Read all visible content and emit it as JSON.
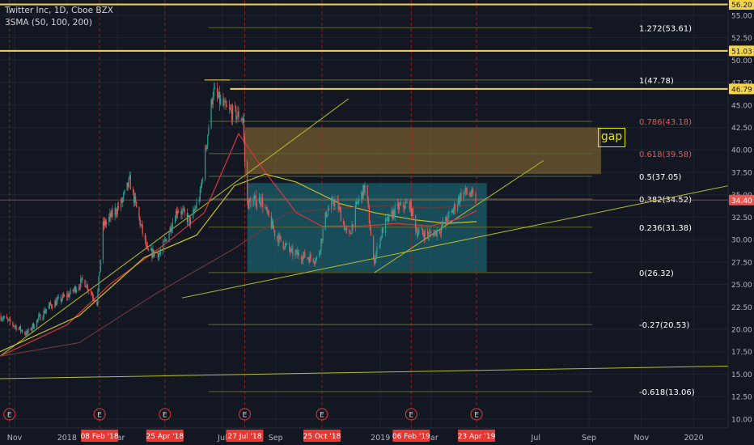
{
  "legend": {
    "symbol_line": "Twitter Inc, 1D, Cboe BZX",
    "indicator_line": "3SMA (50, 100, 200)"
  },
  "annotations": {
    "gap_label": "gap"
  },
  "colors": {
    "background": "#131722",
    "grid": "#1f2433",
    "bull": "#26a69a",
    "bear": "#ef5350",
    "fib_label": "#ffffff",
    "fib_line": "#5d6a2f",
    "gold_line": "#f5d547",
    "gap_zone": "#8a6d32",
    "range_zone": "#1e6f7e",
    "sma_red": "#d9363e",
    "sma_yellow": "#c8c21f",
    "sma_brown": "#6b3a3a",
    "trend": "#b8bd2c",
    "earnings_line": "#b71c1c",
    "earnings_marker": "#e53935"
  },
  "chart_data": {
    "type": "candlestick",
    "title": "Twitter Inc, 1D, Cboe BZX",
    "y_axis": {
      "ticks": [
        "55.00",
        "52.50",
        "50.00",
        "47.50",
        "45.00",
        "42.50",
        "40.00",
        "37.50",
        "35.00",
        "32.50",
        "30.00",
        "27.50",
        "25.00",
        "22.50",
        "20.00",
        "17.50",
        "15.00",
        "12.50",
        "10.00"
      ],
      "tick_values": [
        55,
        52.5,
        50,
        47.5,
        45,
        42.5,
        40,
        37.5,
        35,
        32.5,
        30,
        27.5,
        25,
        22.5,
        20,
        17.5,
        15,
        12.5,
        10
      ],
      "range": [
        9.0,
        56.7
      ],
      "price_badges": [
        {
          "label": "56.20",
          "value": 56.2,
          "style": "gold"
        },
        {
          "label": "51.03",
          "value": 51.03,
          "style": "gold"
        },
        {
          "label": "46.79",
          "value": 46.79,
          "style": "gold"
        },
        {
          "label": "34.40",
          "value": 34.4,
          "style": "red"
        }
      ]
    },
    "x_axis": {
      "ticks": [
        "Nov",
        "2018",
        "Mar",
        "Jul",
        "Sep",
        "2019",
        "Mar",
        "Jul",
        "Sep",
        "Nov",
        "2020"
      ],
      "tick_dates": [
        "2017-11-01",
        "2018-01-01",
        "2018-03-01",
        "2018-07-01",
        "2018-09-01",
        "2019-01-01",
        "2019-03-01",
        "2019-07-01",
        "2019-09-01",
        "2019-11-01",
        "2020-01-01"
      ],
      "range": [
        "2017-10-15",
        "2020-02-10"
      ],
      "highlight_dates": [
        {
          "label": "08 Feb '18",
          "date": "2018-02-08"
        },
        {
          "label": "25 Apr '18",
          "date": "2018-04-25"
        },
        {
          "label": "27 Jul '18",
          "date": "2018-07-27"
        },
        {
          "label": "25 Oct '18",
          "date": "2018-10-25"
        },
        {
          "label": "06 Feb '19",
          "date": "2019-02-06"
        },
        {
          "label": "23 Apr '19",
          "date": "2019-04-23"
        }
      ],
      "earnings_marker_label": "E",
      "earnings_dates": [
        "2017-10-26",
        "2018-02-08",
        "2018-04-25",
        "2018-07-27",
        "2018-10-25",
        "2019-02-06",
        "2019-04-23"
      ]
    },
    "price_path": [
      [
        "2017-10-15",
        21.5
      ],
      [
        "2017-11-15",
        19.5
      ],
      [
        "2017-12-10",
        22.5
      ],
      [
        "2018-01-05",
        24.0
      ],
      [
        "2018-01-20",
        25.5
      ],
      [
        "2018-02-05",
        23.0
      ],
      [
        "2018-02-12",
        31.5
      ],
      [
        "2018-03-05",
        34.0
      ],
      [
        "2018-03-15",
        36.5
      ],
      [
        "2018-04-05",
        28.5
      ],
      [
        "2018-04-20",
        28.5
      ],
      [
        "2018-05-10",
        33.5
      ],
      [
        "2018-05-25",
        32.0
      ],
      [
        "2018-06-05",
        35.0
      ],
      [
        "2018-06-20",
        46.5
      ],
      [
        "2018-07-05",
        44.5
      ],
      [
        "2018-07-25",
        43.5
      ],
      [
        "2018-07-29",
        34.0
      ],
      [
        "2018-08-15",
        34.5
      ],
      [
        "2018-09-01",
        30.5
      ],
      [
        "2018-09-20",
        28.5
      ],
      [
        "2018-10-10",
        28.0
      ],
      [
        "2018-10-20",
        27.8
      ],
      [
        "2018-10-30",
        33.0
      ],
      [
        "2018-11-10",
        34.5
      ],
      [
        "2018-11-25",
        30.0
      ],
      [
        "2018-12-05",
        34.0
      ],
      [
        "2018-12-15",
        36.0
      ],
      [
        "2018-12-24",
        27.5
      ],
      [
        "2019-01-05",
        31.5
      ],
      [
        "2019-01-20",
        33.5
      ],
      [
        "2019-02-04",
        34.0
      ],
      [
        "2019-02-12",
        31.0
      ],
      [
        "2019-02-25",
        30.5
      ],
      [
        "2019-03-10",
        31.0
      ],
      [
        "2019-03-25",
        33.0
      ],
      [
        "2019-04-05",
        35.0
      ],
      [
        "2019-04-12",
        35.3
      ],
      [
        "2019-04-22",
        34.4
      ]
    ],
    "series": [
      {
        "name": "SMA 50",
        "color": "#d9363e",
        "points": [
          [
            "2017-10-15",
            17.0
          ],
          [
            "2018-01-01",
            20.5
          ],
          [
            "2018-02-20",
            25.0
          ],
          [
            "2018-04-25",
            29.5
          ],
          [
            "2018-06-10",
            33.0
          ],
          [
            "2018-07-20",
            41.8
          ],
          [
            "2018-08-20",
            37.5
          ],
          [
            "2018-09-25",
            33.0
          ],
          [
            "2018-10-25",
            31.5
          ],
          [
            "2018-12-10",
            31.5
          ],
          [
            "2019-01-20",
            31.8
          ],
          [
            "2019-03-01",
            31.5
          ],
          [
            "2019-04-05",
            32.4
          ],
          [
            "2019-04-23",
            33.2
          ]
        ]
      },
      {
        "name": "SMA 100",
        "color": "#c8c21f",
        "points": [
          [
            "2017-10-15",
            17.5
          ],
          [
            "2018-01-15",
            21.5
          ],
          [
            "2018-04-01",
            28.0
          ],
          [
            "2018-06-01",
            30.5
          ],
          [
            "2018-07-15",
            36.0
          ],
          [
            "2018-08-20",
            37.3
          ],
          [
            "2018-09-25",
            36.4
          ],
          [
            "2018-11-15",
            34.0
          ],
          [
            "2018-12-25",
            33.0
          ],
          [
            "2019-02-10",
            32.2
          ],
          [
            "2019-03-20",
            31.8
          ],
          [
            "2019-04-23",
            32.0
          ]
        ]
      },
      {
        "name": "SMA 200",
        "color": "#6b3a3a",
        "points": [
          [
            "2017-10-15",
            17.0
          ],
          [
            "2018-01-15",
            18.5
          ],
          [
            "2018-04-15",
            24.0
          ],
          [
            "2018-07-15",
            29.0
          ],
          [
            "2018-09-15",
            33.0
          ],
          [
            "2018-11-15",
            33.5
          ],
          [
            "2019-01-15",
            33.8
          ],
          [
            "2019-03-01",
            33.5
          ],
          [
            "2019-04-23",
            33.9
          ]
        ]
      }
    ],
    "fib_levels": [
      {
        "label": "1.272(53.61)",
        "value": 53.61
      },
      {
        "label": "1(47.78)",
        "value": 47.78
      },
      {
        "label": "0.786(43.18)",
        "value": 43.18
      },
      {
        "label": "0.618(39.58)",
        "value": 39.58
      },
      {
        "label": "0.5(37.05)",
        "value": 37.05
      },
      {
        "label": "0.382(34.52)",
        "value": 34.52
      },
      {
        "label": "0.236(31.38)",
        "value": 31.38
      },
      {
        "label": "0(26.32)",
        "value": 26.32
      },
      {
        "label": "-0.27(20.53)",
        "value": 20.53
      },
      {
        "label": "-0.618(13.06)",
        "value": 13.06
      }
    ],
    "horizontal_levels": [
      {
        "value": 56.2,
        "color": "gold"
      },
      {
        "value": 51.03,
        "color": "gold"
      },
      {
        "value": 46.79,
        "color": "gold"
      },
      {
        "value": 34.4,
        "color": "red"
      }
    ],
    "zones": [
      {
        "name": "gap",
        "from_date": "2018-07-27",
        "to_date": "2019-09-15",
        "low": 37.3,
        "high": 42.5
      },
      {
        "name": "range",
        "from_date": "2018-07-30",
        "to_date": "2019-05-05",
        "low": 26.4,
        "high": 36.3
      }
    ],
    "trendlines": [
      {
        "from": [
          "2017-10-15",
          17.0
        ],
        "to": [
          "2018-11-25",
          45.7
        ]
      },
      {
        "from": [
          "2018-12-25",
          26.3
        ],
        "to": [
          "2019-07-10",
          38.8
        ]
      },
      {
        "from": [
          "2018-05-15",
          23.5
        ],
        "to": [
          "2020-02-10",
          36.0
        ]
      },
      {
        "from": [
          "2017-10-15",
          14.5
        ],
        "to": [
          "2020-02-10",
          15.9
        ]
      }
    ]
  }
}
